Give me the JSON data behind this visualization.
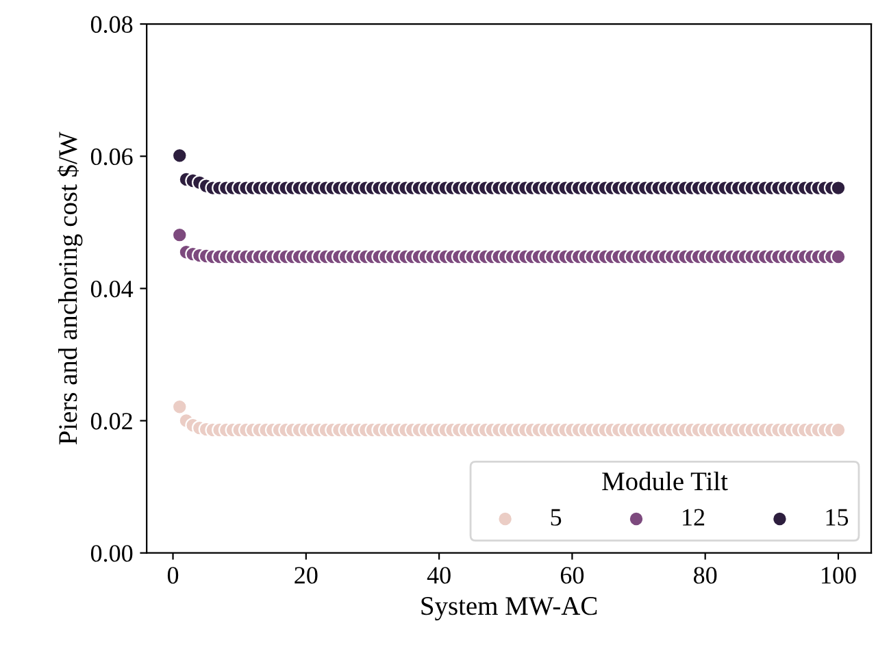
{
  "chart_data": {
    "type": "scatter",
    "xlabel": "System MW-AC",
    "ylabel": "Piers and anchoring cost $/W",
    "legend_title": "Module Tilt",
    "legend": "lower right",
    "marker": "circle",
    "grid": false,
    "x": [
      1,
      2,
      3,
      4,
      5,
      6,
      7,
      8,
      9,
      10,
      11,
      12,
      13,
      14,
      15,
      16,
      17,
      18,
      19,
      20,
      21,
      22,
      23,
      24,
      25,
      26,
      27,
      28,
      29,
      30,
      31,
      32,
      33,
      34,
      35,
      36,
      37,
      38,
      39,
      40,
      41,
      42,
      43,
      44,
      45,
      46,
      47,
      48,
      49,
      50,
      51,
      52,
      53,
      54,
      55,
      56,
      57,
      58,
      59,
      60,
      61,
      62,
      63,
      64,
      65,
      66,
      67,
      68,
      69,
      70,
      71,
      72,
      73,
      74,
      75,
      76,
      77,
      78,
      79,
      80,
      81,
      82,
      83,
      84,
      85,
      86,
      87,
      88,
      89,
      90,
      91,
      92,
      93,
      94,
      95,
      96,
      97,
      98,
      99,
      100
    ],
    "xlim": [
      -3.95,
      104.95
    ],
    "xticks": [
      0,
      20,
      40,
      60,
      80,
      100
    ],
    "ylim": [
      0,
      0.08
    ],
    "yticks": [
      {
        "value": 0,
        "label": "0.00"
      },
      {
        "value": 0.02,
        "label": "0.02"
      },
      {
        "value": 0.04,
        "label": "0.04"
      },
      {
        "value": 0.06,
        "label": "0.06"
      },
      {
        "value": 0.08,
        "label": "0.08"
      }
    ],
    "series": [
      {
        "name": "5",
        "color": "#ebcdc5",
        "values": [
          0.0221,
          0.02,
          0.0193,
          0.0189,
          0.0187,
          0.0186,
          0.0186,
          0.0186,
          0.0186,
          0.0186,
          0.0186,
          0.0186,
          0.0186,
          0.0186,
          0.0186,
          0.0186,
          0.0186,
          0.0186,
          0.0186,
          0.0186,
          0.0186,
          0.0186,
          0.0186,
          0.0186,
          0.0186,
          0.0186,
          0.0186,
          0.0186,
          0.0186,
          0.0186,
          0.0186,
          0.0186,
          0.0186,
          0.0186,
          0.0186,
          0.0186,
          0.0186,
          0.0186,
          0.0186,
          0.0186,
          0.0186,
          0.0186,
          0.0186,
          0.0186,
          0.0186,
          0.0186,
          0.0186,
          0.0186,
          0.0186,
          0.0186,
          0.0186,
          0.0186,
          0.0186,
          0.0186,
          0.0186,
          0.0186,
          0.0186,
          0.0186,
          0.0186,
          0.0186,
          0.0186,
          0.0186,
          0.0186,
          0.0186,
          0.0186,
          0.0186,
          0.0186,
          0.0186,
          0.0186,
          0.0186,
          0.0186,
          0.0186,
          0.0186,
          0.0186,
          0.0186,
          0.0186,
          0.0186,
          0.0186,
          0.0186,
          0.0186,
          0.0186,
          0.0186,
          0.0186,
          0.0186,
          0.0186,
          0.0186,
          0.0186,
          0.0186,
          0.0186,
          0.0186,
          0.0186,
          0.0186,
          0.0186,
          0.0186,
          0.0186,
          0.0186,
          0.0186,
          0.0186,
          0.0186,
          0.0186
        ]
      },
      {
        "name": "12",
        "color": "#7d4a7e",
        "values": [
          0.0481,
          0.0455,
          0.0452,
          0.045,
          0.0449,
          0.0448,
          0.0448,
          0.0448,
          0.0448,
          0.0448,
          0.0448,
          0.0448,
          0.0448,
          0.0448,
          0.0448,
          0.0448,
          0.0448,
          0.0448,
          0.0448,
          0.0448,
          0.0448,
          0.0448,
          0.0448,
          0.0448,
          0.0448,
          0.0448,
          0.0448,
          0.0448,
          0.0448,
          0.0448,
          0.0448,
          0.0448,
          0.0448,
          0.0448,
          0.0448,
          0.0448,
          0.0448,
          0.0448,
          0.0448,
          0.0448,
          0.0448,
          0.0448,
          0.0448,
          0.0448,
          0.0448,
          0.0448,
          0.0448,
          0.0448,
          0.0448,
          0.0448,
          0.0448,
          0.0448,
          0.0448,
          0.0448,
          0.0448,
          0.0448,
          0.0448,
          0.0448,
          0.0448,
          0.0448,
          0.0448,
          0.0448,
          0.0448,
          0.0448,
          0.0448,
          0.0448,
          0.0448,
          0.0448,
          0.0448,
          0.0448,
          0.0448,
          0.0448,
          0.0448,
          0.0448,
          0.0448,
          0.0448,
          0.0448,
          0.0448,
          0.0448,
          0.0448,
          0.0448,
          0.0448,
          0.0448,
          0.0448,
          0.0448,
          0.0448,
          0.0448,
          0.0448,
          0.0448,
          0.0448,
          0.0448,
          0.0448,
          0.0448,
          0.0448,
          0.0448,
          0.0448,
          0.0448,
          0.0448,
          0.0448,
          0.0448
        ]
      },
      {
        "name": "15",
        "color": "#2d1e3e",
        "values": [
          0.0601,
          0.0565,
          0.0563,
          0.056,
          0.0555,
          0.0552,
          0.0552,
          0.0552,
          0.0552,
          0.0552,
          0.0552,
          0.0552,
          0.0552,
          0.0552,
          0.0552,
          0.0552,
          0.0552,
          0.0552,
          0.0552,
          0.0552,
          0.0552,
          0.0552,
          0.0552,
          0.0552,
          0.0552,
          0.0552,
          0.0552,
          0.0552,
          0.0552,
          0.0552,
          0.0552,
          0.0552,
          0.0552,
          0.0552,
          0.0552,
          0.0552,
          0.0552,
          0.0552,
          0.0552,
          0.0552,
          0.0552,
          0.0552,
          0.0552,
          0.0552,
          0.0552,
          0.0552,
          0.0552,
          0.0552,
          0.0552,
          0.0552,
          0.0552,
          0.0552,
          0.0552,
          0.0552,
          0.0552,
          0.0552,
          0.0552,
          0.0552,
          0.0552,
          0.0552,
          0.0552,
          0.0552,
          0.0552,
          0.0552,
          0.0552,
          0.0552,
          0.0552,
          0.0552,
          0.0552,
          0.0552,
          0.0552,
          0.0552,
          0.0552,
          0.0552,
          0.0552,
          0.0552,
          0.0552,
          0.0552,
          0.0552,
          0.0552,
          0.0552,
          0.0552,
          0.0552,
          0.0552,
          0.0552,
          0.0552,
          0.0552,
          0.0552,
          0.0552,
          0.0552,
          0.0552,
          0.0552,
          0.0552,
          0.0552,
          0.0552,
          0.0552,
          0.0552,
          0.0552,
          0.0552,
          0.0552
        ]
      }
    ]
  }
}
